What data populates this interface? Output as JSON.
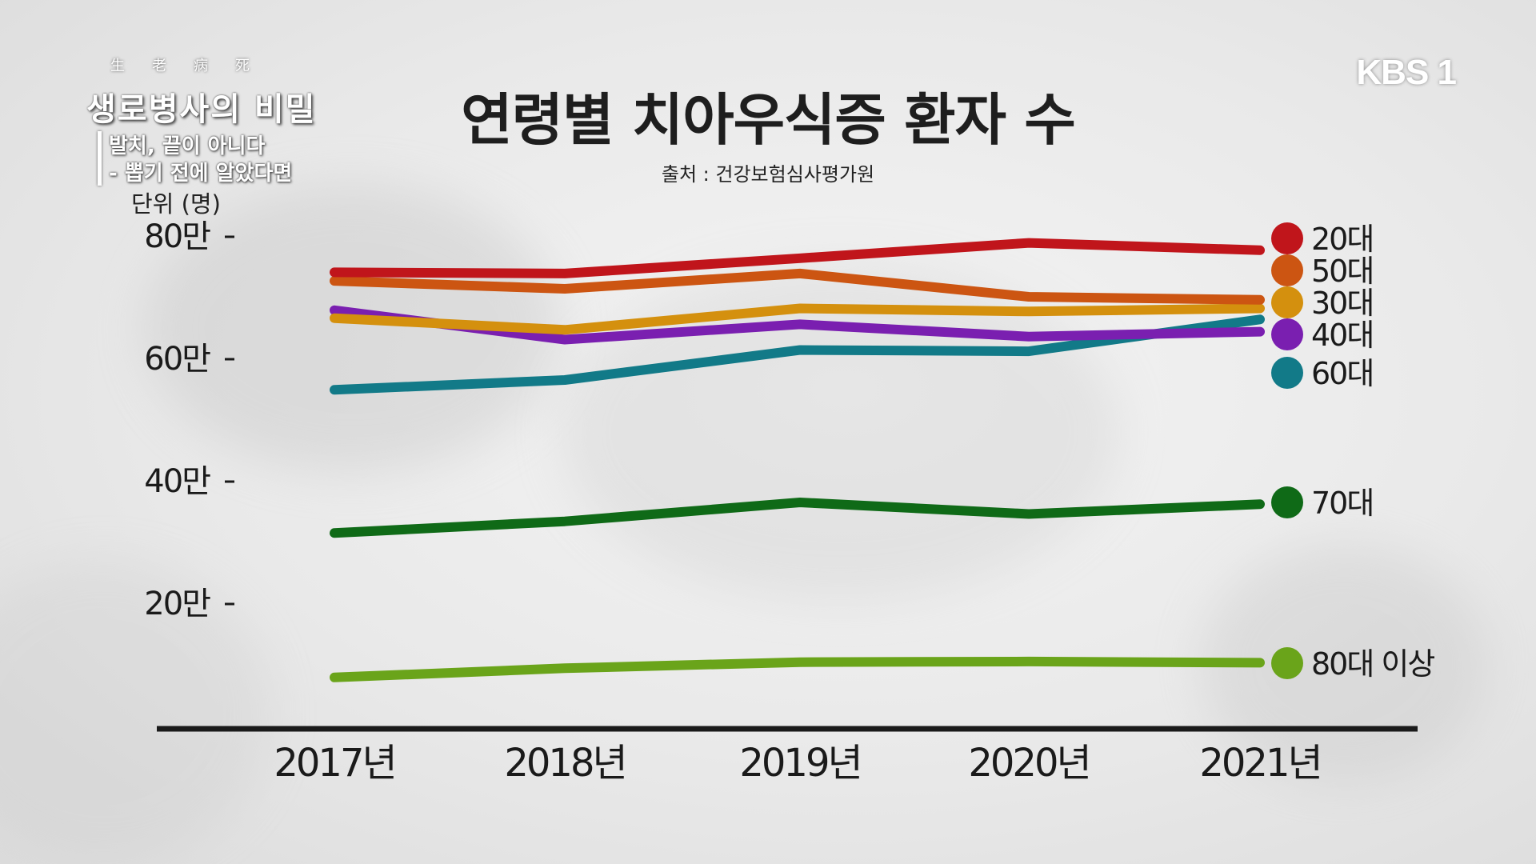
{
  "program": {
    "hanja": "生老病死",
    "title": "생로병사의 비밀",
    "subtitle_line1": "발치, 끝이 아니다",
    "subtitle_line2": "- 뽑기 전에 알았다면"
  },
  "broadcaster": "KBS 1",
  "chart_data": {
    "type": "line",
    "title": "연령별 치아우식증 환자 수",
    "source": "출처 : 건강보험심사평가원",
    "unit": "단위 (명)",
    "categories": [
      "2017년",
      "2018년",
      "2019년",
      "2020년",
      "2021년"
    ],
    "y_ticks": [
      {
        "value": 200000,
        "label": "20만"
      },
      {
        "value": 400000,
        "label": "40만"
      },
      {
        "value": 600000,
        "label": "60만"
      },
      {
        "value": 800000,
        "label": "80만"
      }
    ],
    "ylim": [
      0,
      800000
    ],
    "grid": false,
    "legend": "right",
    "series": [
      {
        "name": "20대",
        "color": "#c0151b",
        "values": [
          742000,
          740000,
          765000,
          790000,
          778000
        ]
      },
      {
        "name": "50대",
        "color": "#cc5512",
        "values": [
          728000,
          715000,
          740000,
          702000,
          697000
        ]
      },
      {
        "name": "30대",
        "color": "#d4900e",
        "values": [
          667000,
          648000,
          683000,
          678000,
          683000
        ]
      },
      {
        "name": "40대",
        "color": "#7a1fb0",
        "values": [
          680000,
          632000,
          657000,
          637000,
          645000
        ]
      },
      {
        "name": "60대",
        "color": "#127a88",
        "values": [
          550000,
          566000,
          615000,
          613000,
          665000
        ]
      },
      {
        "name": "70대",
        "color": "#0f6a17",
        "values": [
          316000,
          335000,
          366000,
          347000,
          363000
        ]
      },
      {
        "name": "80대 이상",
        "color": "#6aa41a",
        "values": [
          80000,
          95000,
          105000,
          106000,
          104000
        ]
      }
    ],
    "legend_order": [
      "20대",
      "50대",
      "30대",
      "40대",
      "60대",
      "70대",
      "80대 이상"
    ]
  }
}
